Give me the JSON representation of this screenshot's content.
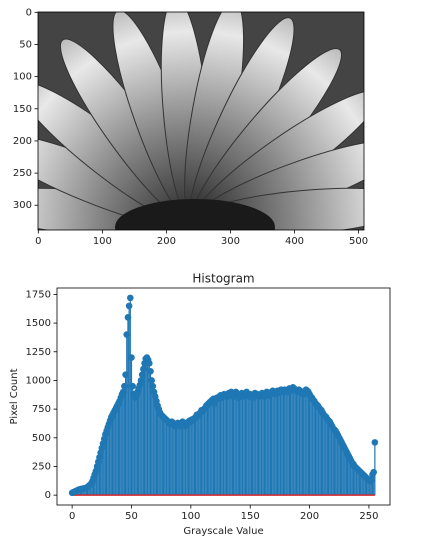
{
  "chart_data": [
    {
      "type": "image",
      "xlim": [
        -0.5,
        508.5
      ],
      "ylim": [
        338.5,
        -0.5
      ],
      "xticks": [
        0,
        100,
        200,
        300,
        400,
        500
      ],
      "yticks": [
        0,
        50,
        100,
        150,
        200,
        250,
        300
      ]
    },
    {
      "type": "stem",
      "title": "Histogram",
      "x_label": "Grayscale Value",
      "y_label": "Pixel Count",
      "color": "#1f77b4",
      "baseline_color": "#d62728",
      "xlim": [
        -12.75,
        267.75
      ],
      "ylim": [
        -86,
        1806
      ],
      "xticks": [
        0,
        50,
        100,
        150,
        200,
        250
      ],
      "yticks": [
        0,
        250,
        500,
        750,
        1000,
        1250,
        1500,
        1750
      ],
      "x": [
        0,
        1,
        2,
        3,
        4,
        5,
        6,
        7,
        8,
        9,
        10,
        11,
        12,
        13,
        14,
        15,
        16,
        17,
        18,
        19,
        20,
        21,
        22,
        23,
        24,
        25,
        26,
        27,
        28,
        29,
        30,
        31,
        32,
        33,
        34,
        35,
        36,
        37,
        38,
        39,
        40,
        41,
        42,
        43,
        44,
        45,
        46,
        47,
        48,
        49,
        50,
        51,
        52,
        53,
        54,
        55,
        56,
        57,
        58,
        59,
        60,
        61,
        62,
        63,
        64,
        65,
        66,
        67,
        68,
        69,
        70,
        71,
        72,
        73,
        74,
        75,
        76,
        77,
        78,
        79,
        80,
        81,
        82,
        83,
        84,
        85,
        86,
        87,
        88,
        89,
        90,
        91,
        92,
        93,
        94,
        95,
        96,
        97,
        98,
        99,
        100,
        101,
        102,
        103,
        104,
        105,
        106,
        107,
        108,
        109,
        110,
        111,
        112,
        113,
        114,
        115,
        116,
        117,
        118,
        119,
        120,
        121,
        122,
        123,
        124,
        125,
        126,
        127,
        128,
        129,
        130,
        131,
        132,
        133,
        134,
        135,
        136,
        137,
        138,
        139,
        140,
        141,
        142,
        143,
        144,
        145,
        146,
        147,
        148,
        149,
        150,
        151,
        152,
        153,
        154,
        155,
        156,
        157,
        158,
        159,
        160,
        161,
        162,
        163,
        164,
        165,
        166,
        167,
        168,
        169,
        170,
        171,
        172,
        173,
        174,
        175,
        176,
        177,
        178,
        179,
        180,
        181,
        182,
        183,
        184,
        185,
        186,
        187,
        188,
        189,
        190,
        191,
        192,
        193,
        194,
        195,
        196,
        197,
        198,
        199,
        200,
        201,
        202,
        203,
        204,
        205,
        206,
        207,
        208,
        209,
        210,
        211,
        212,
        213,
        214,
        215,
        216,
        217,
        218,
        219,
        220,
        221,
        222,
        223,
        224,
        225,
        226,
        227,
        228,
        229,
        230,
        231,
        232,
        233,
        234,
        235,
        236,
        237,
        238,
        239,
        240,
        241,
        242,
        243,
        244,
        245,
        246,
        247,
        248,
        249,
        250,
        251,
        252,
        253,
        254,
        255
      ],
      "values": [
        20,
        25,
        30,
        35,
        40,
        45,
        50,
        50,
        55,
        55,
        60,
        60,
        65,
        70,
        80,
        90,
        100,
        120,
        150,
        180,
        210,
        250,
        290,
        330,
        370,
        410,
        450,
        490,
        530,
        560,
        590,
        620,
        650,
        680,
        700,
        720,
        740,
        760,
        780,
        800,
        820,
        850,
        880,
        900,
        950,
        1050,
        1400,
        1550,
        1650,
        1720,
        1200,
        950,
        880,
        850,
        870,
        900,
        930,
        960,
        1000,
        1050,
        1100,
        1150,
        1190,
        1200,
        1180,
        1150,
        1080,
        1000,
        950,
        900,
        860,
        820,
        780,
        750,
        720,
        700,
        690,
        680,
        670,
        660,
        650,
        640,
        630,
        620,
        640,
        630,
        610,
        600,
        620,
        630,
        610,
        600,
        620,
        640,
        610,
        600,
        630,
        620,
        640,
        650,
        640,
        660,
        650,
        670,
        680,
        700,
        690,
        710,
        720,
        740,
        730,
        750,
        760,
        780,
        790,
        800,
        810,
        820,
        830,
        840,
        800,
        830,
        850,
        840,
        860,
        870,
        850,
        860,
        880,
        870,
        860,
        880,
        890,
        870,
        900,
        880,
        860,
        890,
        900,
        870,
        850,
        880,
        870,
        890,
        860,
        870,
        880,
        900,
        870,
        860,
        880,
        870,
        850,
        860,
        890,
        870,
        880,
        860,
        870,
        880,
        890,
        870,
        860,
        880,
        900,
        890,
        870,
        880,
        900,
        910,
        890,
        880,
        900,
        910,
        890,
        900,
        920,
        910,
        900,
        920,
        910,
        900,
        920,
        930,
        910,
        920,
        940,
        930,
        920,
        910,
        900,
        920,
        910,
        890,
        900,
        880,
        900,
        920,
        910,
        900,
        880,
        860,
        850,
        830,
        820,
        800,
        790,
        780,
        760,
        750,
        740,
        720,
        700,
        690,
        680,
        660,
        650,
        640,
        620,
        600,
        580,
        570,
        560,
        540,
        520,
        500,
        480,
        460,
        440,
        420,
        400,
        380,
        360,
        340,
        320,
        300,
        280,
        270,
        250,
        240,
        230,
        220,
        210,
        200,
        190,
        180,
        170,
        160,
        150,
        140,
        130,
        120,
        130,
        180,
        200,
        460
      ]
    }
  ]
}
